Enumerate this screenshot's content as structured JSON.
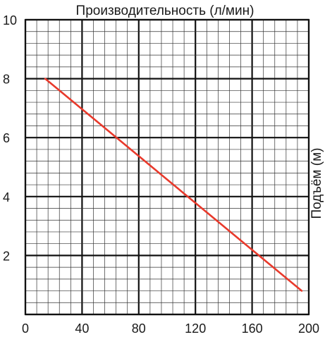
{
  "chart_data": {
    "type": "line",
    "title": "Производительность (л/мин)",
    "ylabel": "Подъём (м)",
    "xlim": [
      0,
      200
    ],
    "ylim": [
      0,
      10
    ],
    "xticks": [
      "0",
      "40",
      "80",
      "120",
      "160",
      "200"
    ],
    "yticks": [
      "2",
      "4",
      "6",
      "8",
      "10"
    ],
    "grid": true,
    "series": [
      {
        "x": [
          14,
          195
        ],
        "y": [
          8.0,
          0.8
        ]
      }
    ],
    "colors": {
      "line": "#e8392b",
      "grid": "#111111"
    }
  }
}
